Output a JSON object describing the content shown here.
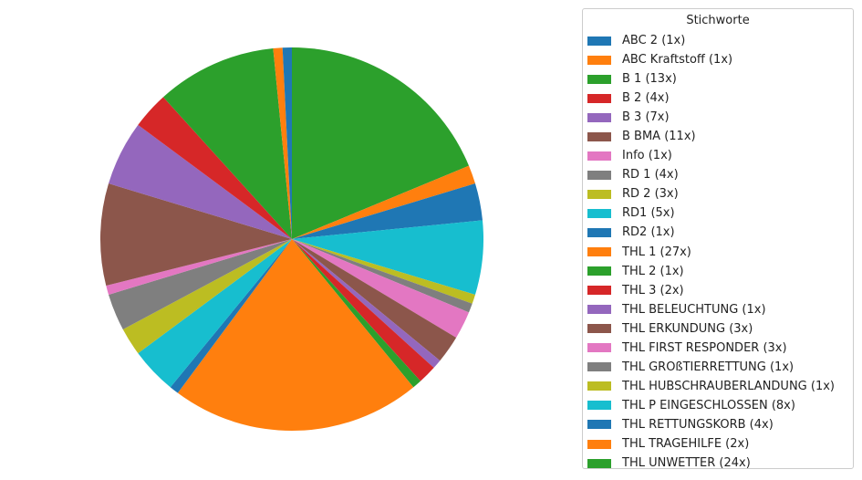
{
  "chart_data": {
    "type": "pie",
    "start_angle_deg": 90,
    "direction": "clockwise",
    "legend": {
      "title": "Stichworte",
      "placement": "right"
    },
    "slices": [
      {
        "label": "THL UNWETTER (24x)",
        "value": 24,
        "color": "#2ca02c"
      },
      {
        "label": "THL TRAGEHILFE (2x)",
        "value": 2,
        "color": "#ff7f0e"
      },
      {
        "label": "THL RETTUNGSKORB (4x)",
        "value": 4,
        "color": "#1f77b4"
      },
      {
        "label": "THL P EINGESCHLOSSEN (8x)",
        "value": 8,
        "color": "#17becf"
      },
      {
        "label": "THL HUBSCHRAUBERLANDUNG (1x)",
        "value": 1,
        "color": "#bcbd22"
      },
      {
        "label": "THL GROßTIERRETTUNG (1x)",
        "value": 1,
        "color": "#7f7f7f"
      },
      {
        "label": "THL FIRST RESPONDER (3x)",
        "value": 3,
        "color": "#e377c2"
      },
      {
        "label": "THL ERKUNDUNG (3x)",
        "value": 3,
        "color": "#8c564b"
      },
      {
        "label": "THL BELEUCHTUNG (1x)",
        "value": 1,
        "color": "#9467bd"
      },
      {
        "label": "THL 3 (2x)",
        "value": 2,
        "color": "#d62728"
      },
      {
        "label": "THL 2 (1x)",
        "value": 1,
        "color": "#2ca02c"
      },
      {
        "label": "THL 1 (27x)",
        "value": 27,
        "color": "#ff7f0e"
      },
      {
        "label": "RD2 (1x)",
        "value": 1,
        "color": "#1f77b4"
      },
      {
        "label": "RD1 (5x)",
        "value": 5,
        "color": "#17becf"
      },
      {
        "label": "RD 2 (3x)",
        "value": 3,
        "color": "#bcbd22"
      },
      {
        "label": "RD 1 (4x)",
        "value": 4,
        "color": "#7f7f7f"
      },
      {
        "label": "Info (1x)",
        "value": 1,
        "color": "#e377c2"
      },
      {
        "label": "B BMA (11x)",
        "value": 11,
        "color": "#8c564b"
      },
      {
        "label": "B 3 (7x)",
        "value": 7,
        "color": "#9467bd"
      },
      {
        "label": "B 2 (4x)",
        "value": 4,
        "color": "#d62728"
      },
      {
        "label": "B 1 (13x)",
        "value": 13,
        "color": "#2ca02c"
      },
      {
        "label": "ABC Kraftstoff (1x)",
        "value": 1,
        "color": "#ff7f0e"
      },
      {
        "label": "ABC 2 (1x)",
        "value": 1,
        "color": "#1f77b4"
      }
    ],
    "legend_order": [
      "ABC 2 (1x)",
      "ABC Kraftstoff (1x)",
      "B 1 (13x)",
      "B 2 (4x)",
      "B 3 (7x)",
      "B BMA (11x)",
      "Info (1x)",
      "RD 1 (4x)",
      "RD 2 (3x)",
      "RD1 (5x)",
      "RD2 (1x)",
      "THL 1 (27x)",
      "THL 2 (1x)",
      "THL 3 (2x)",
      "THL BELEUCHTUNG (1x)",
      "THL ERKUNDUNG (3x)",
      "THL FIRST RESPONDER (3x)",
      "THL GROßTIERRETTUNG (1x)",
      "THL HUBSCHRAUBERLANDUNG (1x)",
      "THL P EINGESCHLOSSEN (8x)",
      "THL RETTUNGSKORB (4x)",
      "THL TRAGEHILFE (2x)",
      "THL UNWETTER (24x)"
    ]
  }
}
